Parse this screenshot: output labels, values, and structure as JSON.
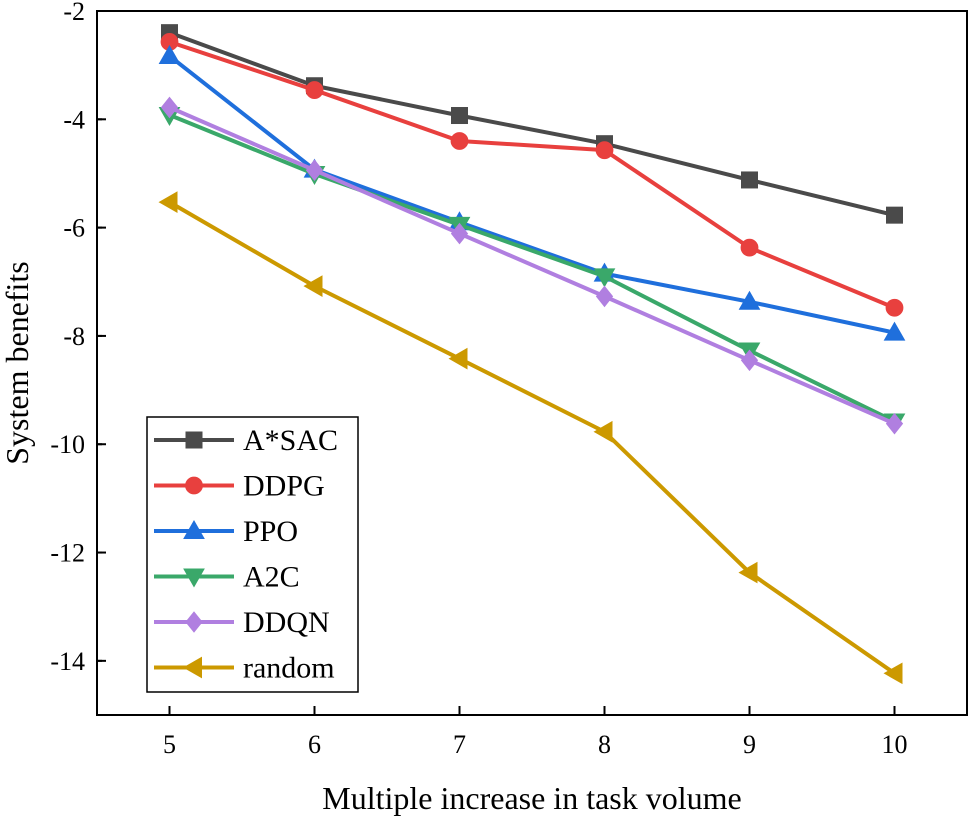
{
  "chart_data": {
    "type": "line",
    "title": "",
    "xlabel": "Multiple increase in task volume",
    "ylabel": "System benefits",
    "x": [
      5,
      6,
      7,
      8,
      9,
      10
    ],
    "xlim": [
      4.5,
      10.5
    ],
    "ylim": [
      -15,
      -2
    ],
    "xticks": [
      5,
      6,
      7,
      8,
      9,
      10
    ],
    "yticks": [
      -2,
      -4,
      -6,
      -8,
      -10,
      -12,
      -14
    ],
    "grid": false,
    "legend_position": "bottom-left",
    "series": [
      {
        "name": "A*SAC",
        "marker": "square",
        "color": "#4a4a4a",
        "values": [
          -2.4,
          -3.38,
          -3.93,
          -4.45,
          -5.12,
          -5.77
        ]
      },
      {
        "name": "DDPG",
        "marker": "circle",
        "color": "#e8403e",
        "values": [
          -2.57,
          -3.46,
          -4.4,
          -4.57,
          -6.37,
          -7.48
        ]
      },
      {
        "name": "PPO",
        "marker": "triangle-up",
        "color": "#1f6fdc",
        "values": [
          -2.83,
          -4.93,
          -5.9,
          -6.85,
          -7.37,
          -7.94
        ]
      },
      {
        "name": "A2C",
        "marker": "triangle-down",
        "color": "#3aa86a",
        "values": [
          -3.92,
          -5.01,
          -5.95,
          -6.9,
          -8.27,
          -9.58
        ]
      },
      {
        "name": "DDQN",
        "marker": "diamond",
        "color": "#b07fe0",
        "values": [
          -3.78,
          -4.94,
          -6.11,
          -7.27,
          -8.45,
          -9.62
        ]
      },
      {
        "name": "random",
        "marker": "triangle-left",
        "color": "#cc9900",
        "values": [
          -5.53,
          -7.08,
          -8.42,
          -9.77,
          -12.37,
          -14.23
        ]
      }
    ]
  }
}
